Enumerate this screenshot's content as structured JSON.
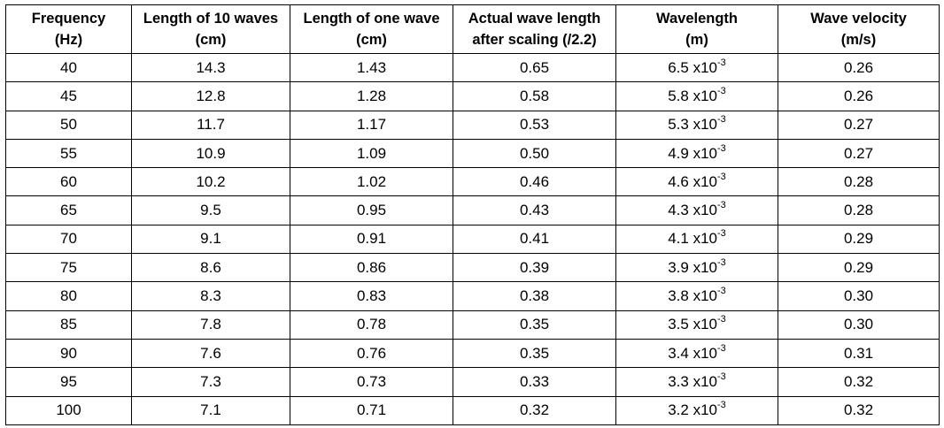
{
  "table": {
    "headers": [
      [
        "Frequency",
        "(Hz)"
      ],
      [
        "Length of 10 waves",
        "(cm)"
      ],
      [
        "Length of one wave",
        "(cm)"
      ],
      [
        "Actual wave length",
        "after scaling (/2.2)"
      ],
      [
        "Wavelength",
        "(m)"
      ],
      [
        "Wave velocity",
        "(m/s)"
      ]
    ],
    "rows": [
      [
        "40",
        "14.3",
        "1.43",
        "0.65",
        {
          "mantissa": "6.5 x10",
          "exponent": "-3"
        },
        "0.26"
      ],
      [
        "45",
        "12.8",
        "1.28",
        "0.58",
        {
          "mantissa": "5.8 x10",
          "exponent": "-3"
        },
        "0.26"
      ],
      [
        "50",
        "11.7",
        "1.17",
        "0.53",
        {
          "mantissa": "5.3 x10",
          "exponent": "-3"
        },
        "0.27"
      ],
      [
        "55",
        "10.9",
        "1.09",
        "0.50",
        {
          "mantissa": "4.9 x10",
          "exponent": "-3"
        },
        "0.27"
      ],
      [
        "60",
        "10.2",
        "1.02",
        "0.46",
        {
          "mantissa": "4.6 x10",
          "exponent": "-3"
        },
        "0.28"
      ],
      [
        "65",
        "9.5",
        "0.95",
        "0.43",
        {
          "mantissa": "4.3 x10",
          "exponent": "-3"
        },
        "0.28"
      ],
      [
        "70",
        "9.1",
        "0.91",
        "0.41",
        {
          "mantissa": "4.1 x10",
          "exponent": "-3"
        },
        "0.29"
      ],
      [
        "75",
        "8.6",
        "0.86",
        "0.39",
        {
          "mantissa": "3.9 x10",
          "exponent": "-3"
        },
        "0.29"
      ],
      [
        "80",
        "8.3",
        "0.83",
        "0.38",
        {
          "mantissa": "3.8 x10",
          "exponent": "-3"
        },
        "0.30"
      ],
      [
        "85",
        "7.8",
        "0.78",
        "0.35",
        {
          "mantissa": "3.5 x10",
          "exponent": "-3"
        },
        "0.30"
      ],
      [
        "90",
        "7.6",
        "0.76",
        "0.35",
        {
          "mantissa": "3.4 x10",
          "exponent": "-3"
        },
        "0.31"
      ],
      [
        "95",
        "7.3",
        "0.73",
        "0.33",
        {
          "mantissa": "3.3 x10",
          "exponent": "-3"
        },
        "0.32"
      ],
      [
        "100",
        "7.1",
        "0.71",
        "0.32",
        {
          "mantissa": "3.2 x10",
          "exponent": "-3"
        },
        "0.32"
      ]
    ]
  }
}
